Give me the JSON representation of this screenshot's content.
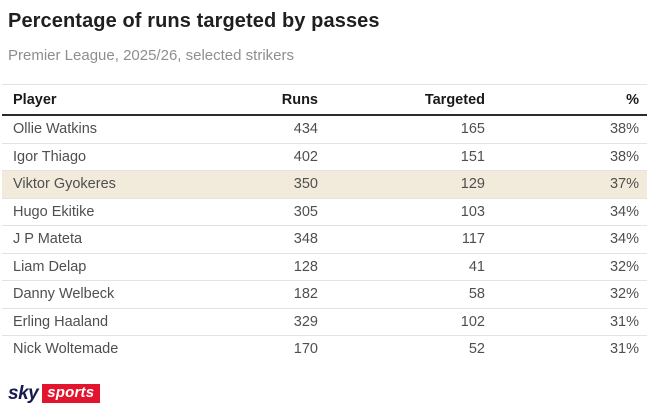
{
  "header": {
    "title": "Percentage of runs targeted by passes",
    "subtitle": "Premier League, 2025/26, selected strikers"
  },
  "table": {
    "columns": [
      "Player",
      "Runs",
      "Targeted",
      "%"
    ],
    "rows": [
      {
        "player": "Ollie Watkins",
        "runs": "434",
        "targeted": "165",
        "pct": "38%",
        "highlight": false
      },
      {
        "player": "Igor Thiago",
        "runs": "402",
        "targeted": "151",
        "pct": "38%",
        "highlight": false
      },
      {
        "player": "Viktor Gyokeres",
        "runs": "350",
        "targeted": "129",
        "pct": "37%",
        "highlight": true
      },
      {
        "player": "Hugo Ekitike",
        "runs": "305",
        "targeted": "103",
        "pct": "34%",
        "highlight": false
      },
      {
        "player": "J P Mateta",
        "runs": "348",
        "targeted": "117",
        "pct": "34%",
        "highlight": false
      },
      {
        "player": "Liam Delap",
        "runs": "128",
        "targeted": "41",
        "pct": "32%",
        "highlight": false
      },
      {
        "player": "Danny Welbeck",
        "runs": "182",
        "targeted": "58",
        "pct": "32%",
        "highlight": false
      },
      {
        "player": "Erling Haaland",
        "runs": "329",
        "targeted": "102",
        "pct": "31%",
        "highlight": false
      },
      {
        "player": "Nick Woltemade",
        "runs": "170",
        "targeted": "52",
        "pct": "31%",
        "highlight": false
      }
    ],
    "highlight_color": "#f2ebdb"
  },
  "branding": {
    "sky_label": "sky",
    "sports_label": "sports",
    "navy_color": "#151a4f",
    "red_color": "#e3142d"
  },
  "chart_data": {
    "type": "table",
    "title": "Percentage of runs targeted by passes",
    "subtitle": "Premier League, 2025/26, selected strikers",
    "categories": [
      "Ollie Watkins",
      "Igor Thiago",
      "Viktor Gyokeres",
      "Hugo Ekitike",
      "J P Mateta",
      "Liam Delap",
      "Danny Welbeck",
      "Erling Haaland",
      "Nick Woltemade"
    ],
    "series": [
      {
        "name": "Runs",
        "values": [
          434,
          402,
          350,
          305,
          348,
          128,
          182,
          329,
          170
        ]
      },
      {
        "name": "Targeted",
        "values": [
          165,
          151,
          129,
          103,
          117,
          41,
          58,
          102,
          52
        ]
      },
      {
        "name": "%",
        "values": [
          38,
          38,
          37,
          34,
          34,
          32,
          32,
          31,
          31
        ]
      }
    ],
    "highlighted_row": "Viktor Gyokeres"
  }
}
